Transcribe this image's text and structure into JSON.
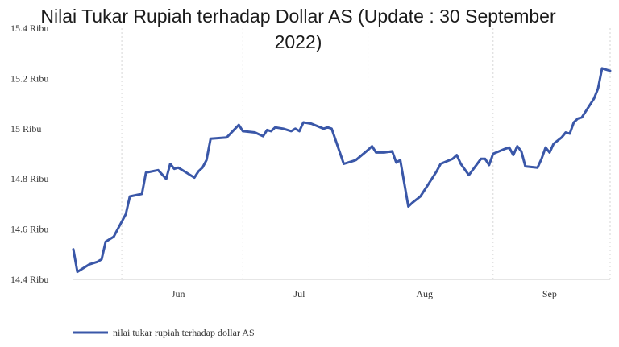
{
  "title_lines": [
    "Nilai Tukar Rupiah terhadap Dollar AS (Update : 30 September",
    "2022)"
  ],
  "chart_data": {
    "type": "line",
    "title": "Nilai Tukar Rupiah terhadap Dollar AS (Update : 30 September 2022)",
    "xlabel": "",
    "ylabel": "",
    "x_ticks": [
      "Jun",
      "Jul",
      "Aug",
      "Sep"
    ],
    "y_ticks": [
      {
        "value": 14400,
        "label": "14.4 Ribu"
      },
      {
        "value": 14600,
        "label": "14.6 Ribu"
      },
      {
        "value": 14800,
        "label": "14.8 Ribu"
      },
      {
        "value": 15000,
        "label": "15 Ribu"
      },
      {
        "value": 15200,
        "label": "15.2 Ribu"
      },
      {
        "value": 15400,
        "label": "15.4 Ribu"
      }
    ],
    "ylim": [
      14400,
      15400
    ],
    "xlim": [
      "2022-05-20",
      "2022-09-30"
    ],
    "grid": "vertical-dashed",
    "legend_position": "bottom-left",
    "series": [
      {
        "name": "nilai tukar rupiah terhadap dollar AS",
        "color": "#3a57a8",
        "points": [
          [
            "2022-05-20",
            14520
          ],
          [
            "2022-05-21",
            14430
          ],
          [
            "2022-05-24",
            14460
          ],
          [
            "2022-05-26",
            14470
          ],
          [
            "2022-05-27",
            14480
          ],
          [
            "2022-05-28",
            14550
          ],
          [
            "2022-05-30",
            14570
          ],
          [
            "2022-05-31",
            14600
          ],
          [
            "2022-06-02",
            14660
          ],
          [
            "2022-06-03",
            14730
          ],
          [
            "2022-06-06",
            14740
          ],
          [
            "2022-06-07",
            14825
          ],
          [
            "2022-06-10",
            14835
          ],
          [
            "2022-06-12",
            14800
          ],
          [
            "2022-06-13",
            14860
          ],
          [
            "2022-06-14",
            14840
          ],
          [
            "2022-06-15",
            14845
          ],
          [
            "2022-06-17",
            14825
          ],
          [
            "2022-06-19",
            14805
          ],
          [
            "2022-06-20",
            14830
          ],
          [
            "2022-06-21",
            14845
          ],
          [
            "2022-06-22",
            14875
          ],
          [
            "2022-06-23",
            14960
          ],
          [
            "2022-06-27",
            14965
          ],
          [
            "2022-06-30",
            15015
          ],
          [
            "2022-07-01",
            14990
          ],
          [
            "2022-07-04",
            14985
          ],
          [
            "2022-07-06",
            14970
          ],
          [
            "2022-07-07",
            14995
          ],
          [
            "2022-07-08",
            14990
          ],
          [
            "2022-07-09",
            15005
          ],
          [
            "2022-07-11",
            15000
          ],
          [
            "2022-07-13",
            14990
          ],
          [
            "2022-07-14",
            15000
          ],
          [
            "2022-07-15",
            14990
          ],
          [
            "2022-07-16",
            15025
          ],
          [
            "2022-07-18",
            15020
          ],
          [
            "2022-07-21",
            15000
          ],
          [
            "2022-07-22",
            15005
          ],
          [
            "2022-07-23",
            15000
          ],
          [
            "2022-07-26",
            14860
          ],
          [
            "2022-07-28",
            14870
          ],
          [
            "2022-07-29",
            14875
          ],
          [
            "2022-08-01",
            14915
          ],
          [
            "2022-08-02",
            14930
          ],
          [
            "2022-08-03",
            14905
          ],
          [
            "2022-08-05",
            14905
          ],
          [
            "2022-08-07",
            14910
          ],
          [
            "2022-08-08",
            14865
          ],
          [
            "2022-08-09",
            14875
          ],
          [
            "2022-08-11",
            14690
          ],
          [
            "2022-08-12",
            14705
          ],
          [
            "2022-08-14",
            14730
          ],
          [
            "2022-08-16",
            14780
          ],
          [
            "2022-08-18",
            14830
          ],
          [
            "2022-08-19",
            14860
          ],
          [
            "2022-08-22",
            14880
          ],
          [
            "2022-08-23",
            14895
          ],
          [
            "2022-08-24",
            14860
          ],
          [
            "2022-08-26",
            14815
          ],
          [
            "2022-08-29",
            14880
          ],
          [
            "2022-08-30",
            14880
          ],
          [
            "2022-08-31",
            14855
          ],
          [
            "2022-09-01",
            14900
          ],
          [
            "2022-09-04",
            14920
          ],
          [
            "2022-09-05",
            14925
          ],
          [
            "2022-09-06",
            14895
          ],
          [
            "2022-09-07",
            14930
          ],
          [
            "2022-09-08",
            14910
          ],
          [
            "2022-09-09",
            14850
          ],
          [
            "2022-09-12",
            14845
          ],
          [
            "2022-09-13",
            14880
          ],
          [
            "2022-09-14",
            14925
          ],
          [
            "2022-09-15",
            14905
          ],
          [
            "2022-09-16",
            14940
          ],
          [
            "2022-09-18",
            14965
          ],
          [
            "2022-09-19",
            14985
          ],
          [
            "2022-09-20",
            14980
          ],
          [
            "2022-09-21",
            15025
          ],
          [
            "2022-09-22",
            15040
          ],
          [
            "2022-09-23",
            15045
          ],
          [
            "2022-09-26",
            15120
          ],
          [
            "2022-09-27",
            15160
          ],
          [
            "2022-09-28",
            15240
          ],
          [
            "2022-09-29",
            15235
          ],
          [
            "2022-09-30",
            15230
          ]
        ]
      }
    ],
    "month_ticks": [
      {
        "label": "Jun",
        "date": "2022-06-15"
      },
      {
        "label": "Jul",
        "date": "2022-07-15"
      },
      {
        "label": "Aug",
        "date": "2022-08-15"
      },
      {
        "label": "Sep",
        "date": "2022-09-15"
      }
    ],
    "month_grid": [
      "2022-06-01",
      "2022-07-01",
      "2022-08-01",
      "2022-09-01"
    ]
  }
}
